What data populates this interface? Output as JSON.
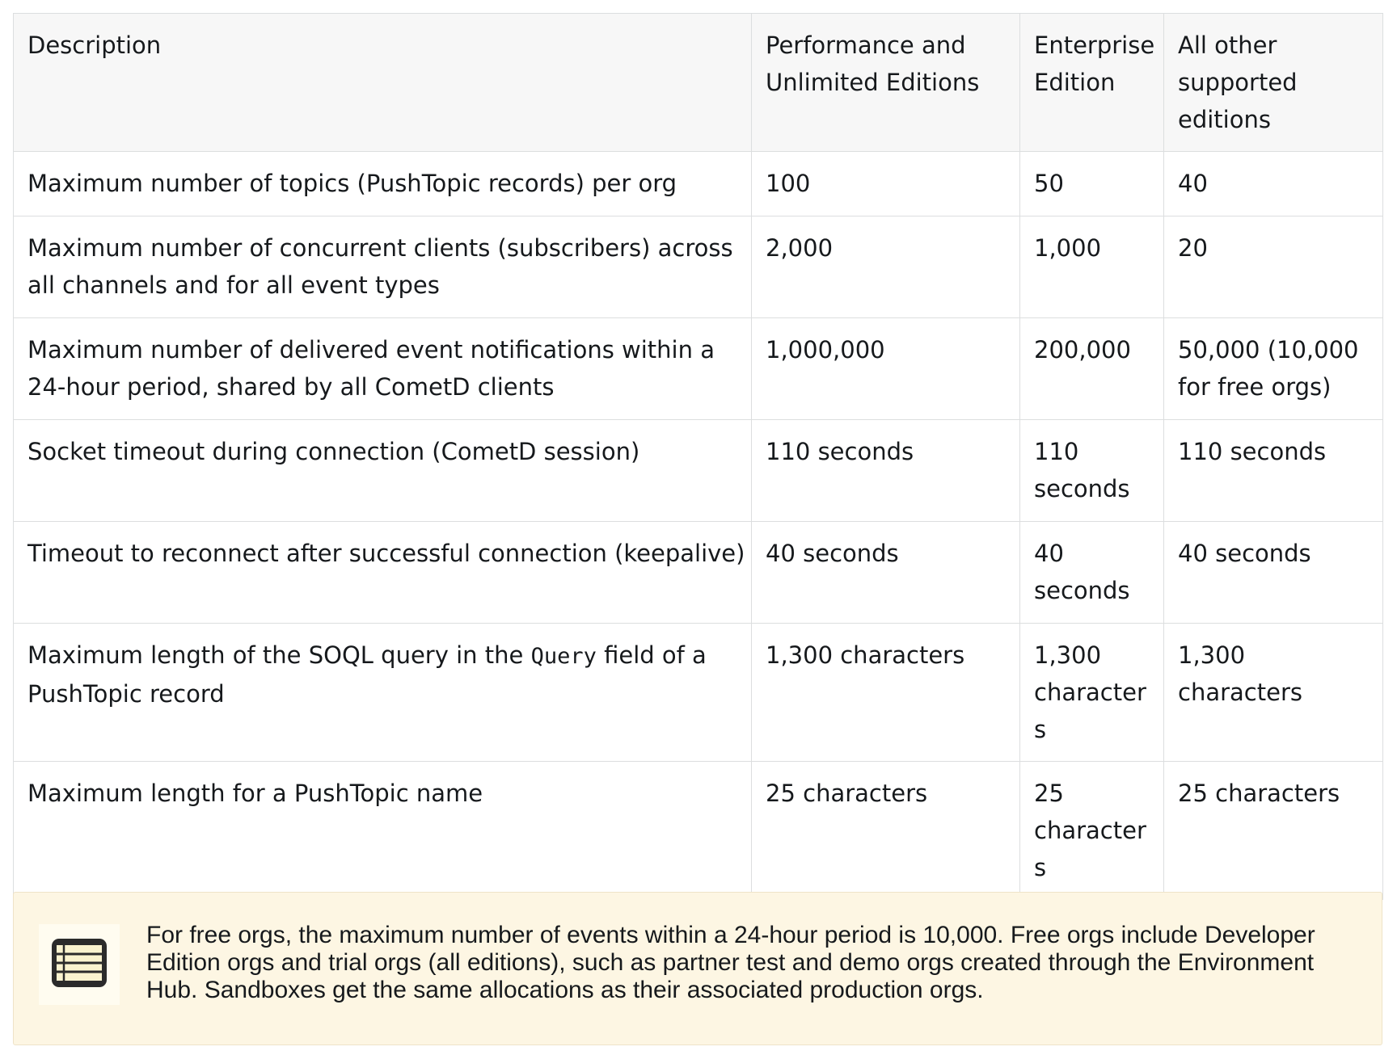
{
  "table": {
    "headers": [
      "Description",
      "Performance and Unlimited Editions",
      "Enterprise Edition",
      "All other supported editions"
    ],
    "rows": [
      {
        "description": "Maximum number of topics (PushTopic records) per org",
        "performance_unlimited": "100",
        "enterprise": "50",
        "other": "40"
      },
      {
        "description": "Maximum number of concurrent clients (subscribers) across all channels and for all event types",
        "performance_unlimited": "2,000",
        "enterprise": "1,000",
        "other": "20"
      },
      {
        "description": "Maximum number of delivered event notifications within a 24-hour period, shared by all CometD clients",
        "performance_unlimited": "1,000,000",
        "enterprise": "200,000",
        "other": "50,000 (10,000 for free orgs)"
      },
      {
        "description": "Socket timeout during connection (CometD session)",
        "performance_unlimited": "110 seconds",
        "enterprise": "110 seconds",
        "other": "110 seconds"
      },
      {
        "description": "Timeout to reconnect after successful connection (keepalive)",
        "performance_unlimited": "40 seconds",
        "enterprise": "40 seconds",
        "other": "40 seconds"
      },
      {
        "description_before": "Maximum length of the SOQL query in the ",
        "description_code": "Query",
        "description_after": " field of a PushTopic record",
        "performance_unlimited": "1,300 characters",
        "enterprise": "1,300 characters",
        "other": "1,300 characters"
      },
      {
        "description": "Maximum length for a PushTopic name",
        "performance_unlimited": "25 characters",
        "enterprise": "25 characters",
        "other": "25 characters"
      }
    ]
  },
  "note": {
    "icon": "note-icon",
    "text": "For free orgs, the maximum number of events within a 24-hour period is 10,000. Free orgs include Developer Edition orgs and trial orgs (all editions), such as partner test and demo orgs created through the Environment Hub. Sandboxes get the same allocations as their associated production orgs."
  }
}
